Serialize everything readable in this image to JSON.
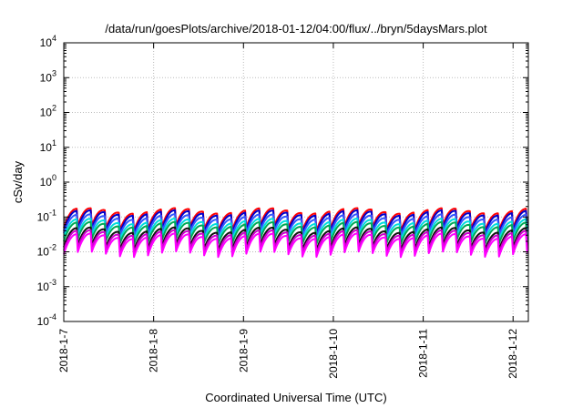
{
  "chart_data": {
    "type": "line",
    "title": "/data/run/goesPlots/archive/2018-01-12/04:00/flux/../bryn/5daysMars.plot",
    "xlabel": "Coordinated Universal Time (UTC)",
    "ylabel": "cSv/day",
    "y_scale": "log",
    "ylim": [
      0.0001,
      10000
    ],
    "xlim": [
      "2018-01-07",
      "2018-01-12 04:00"
    ],
    "grid": true,
    "y_ticks": [
      {
        "base": "10",
        "exp": "-4",
        "value": 0.0001
      },
      {
        "base": "10",
        "exp": "-3",
        "value": 0.001
      },
      {
        "base": "10",
        "exp": "-2",
        "value": 0.01
      },
      {
        "base": "10",
        "exp": "-1",
        "value": 0.1
      },
      {
        "base": "10",
        "exp": "0",
        "value": 1
      },
      {
        "base": "10",
        "exp": "1",
        "value": 10
      },
      {
        "base": "10",
        "exp": "2",
        "value": 100
      },
      {
        "base": "10",
        "exp": "3",
        "value": 1000
      },
      {
        "base": "10",
        "exp": "4",
        "value": 10000
      }
    ],
    "x_ticks": [
      {
        "label": "2018-1-7",
        "day": 7
      },
      {
        "label": "2018-1-8",
        "day": 8
      },
      {
        "label": "2018-1-9",
        "day": 9
      },
      {
        "label": "2018-1-10",
        "day": 10
      },
      {
        "label": "2018-1-11",
        "day": 11
      },
      {
        "label": "2018-1-12",
        "day": 12
      }
    ],
    "pattern": {
      "description": "sawtooth: rises over each cycle then drops sharply",
      "cycles_per_day": 6.4,
      "x_start_day": 7.0,
      "x_end_day": 12.17
    },
    "series": [
      {
        "color": "#ff0000",
        "peak": 0.15,
        "trough": 0.048
      },
      {
        "color": "#0000cc",
        "peak": 0.13,
        "trough": 0.04
      },
      {
        "color": "#3355ff",
        "peak": 0.1,
        "trough": 0.034
      },
      {
        "color": "#00dddd",
        "peak": 0.075,
        "trough": 0.026
      },
      {
        "color": "#00aa55",
        "peak": 0.06,
        "trough": 0.02
      },
      {
        "color": "#111111",
        "peak": 0.042,
        "trough": 0.0135
      },
      {
        "color": "#cc00cc",
        "peak": 0.035,
        "trough": 0.011
      },
      {
        "color": "#ff00ff",
        "peak": 0.028,
        "trough": 0.0085
      }
    ]
  }
}
